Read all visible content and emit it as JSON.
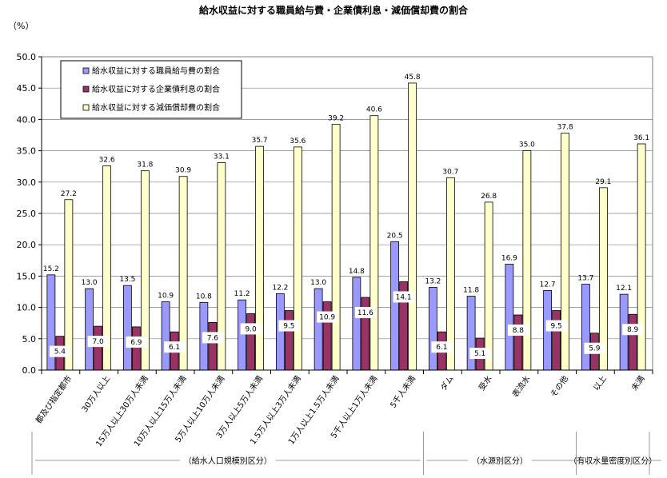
{
  "chart_data": {
    "type": "bar",
    "title": "給水収益に対する職員給与費・企業債利息・減価償却費の割合",
    "unit_label": "（%）",
    "ylim": [
      0,
      50
    ],
    "yticks": [
      "0.0",
      "5.0",
      "10.0",
      "15.0",
      "20.0",
      "25.0",
      "30.0",
      "35.0",
      "40.0",
      "45.0",
      "50.0"
    ],
    "grid": true,
    "legend_position": "top-left",
    "categories": [
      "都及び指定都市",
      "30万人以上",
      "15万人以上30万人未満",
      "10万人以上15万人未満",
      "5万人以上10万人未満",
      "3万人以上5万人未満",
      "1.5万人以上3万人未満",
      "1万人以上1.5万人未満",
      "5千人以上1万人未満",
      "5千人未満",
      "ダム",
      "受水",
      "表流水",
      "その他",
      "以上",
      "未満"
    ],
    "series": [
      {
        "name": "給水収益に対する職員給与費の割合",
        "color": "#9999ff",
        "values": [
          15.2,
          13.0,
          13.5,
          10.9,
          10.8,
          11.2,
          12.2,
          13.0,
          14.8,
          20.5,
          13.2,
          11.8,
          16.9,
          12.7,
          13.7,
          12.1
        ]
      },
      {
        "name": "給水収益に対する企業債利息の割合",
        "color": "#993366",
        "values": [
          5.4,
          7.0,
          6.9,
          6.1,
          7.6,
          9.0,
          9.5,
          10.9,
          11.6,
          14.1,
          6.1,
          5.1,
          8.8,
          9.5,
          5.9,
          8.9
        ]
      },
      {
        "name": "給水収益に対する減価償却費の割合",
        "color": "#ffffcc",
        "values": [
          27.2,
          32.6,
          31.8,
          30.9,
          33.1,
          35.7,
          35.6,
          39.2,
          40.6,
          45.8,
          30.7,
          26.8,
          35.0,
          37.8,
          29.1,
          36.1
        ]
      }
    ],
    "groups": [
      {
        "label": "（給水人口規模別区分）"
      },
      {
        "label": "（水源別区分）"
      },
      {
        "label": "（有収水量密度別区分）"
      }
    ]
  }
}
